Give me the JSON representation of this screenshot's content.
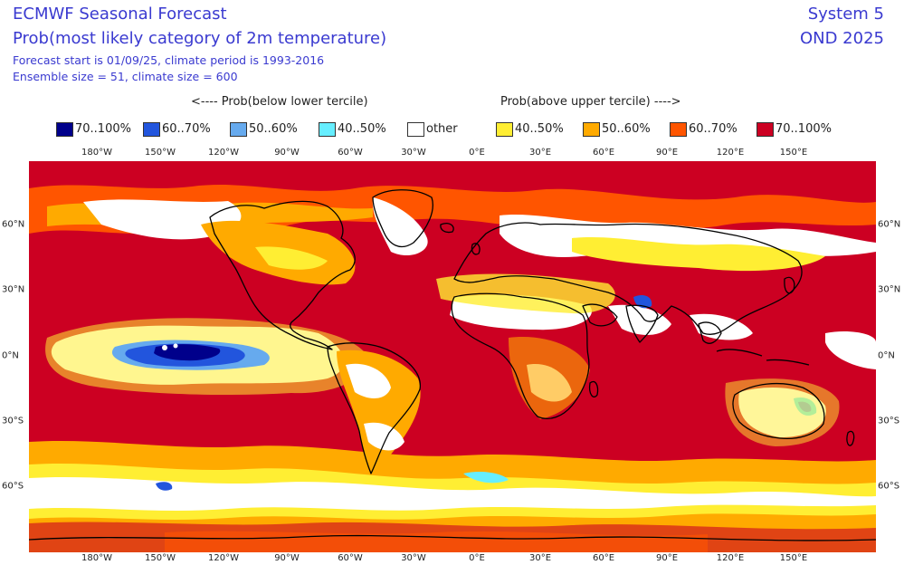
{
  "header": {
    "title_line1": "ECMWF Seasonal Forecast",
    "title_line2": "Prob(most likely category of 2m temperature)",
    "forecast_start": "Forecast start is 01/09/25, climate period is 1993-2016",
    "ensemble": "Ensemble size = 51, climate size = 600",
    "system": "System 5",
    "period": "OND 2025"
  },
  "legend": {
    "below_label": "<---- Prob(below lower tercile)",
    "above_label": "Prob(above upper tercile) ---->",
    "items": [
      {
        "label": "70..100%",
        "color": "#00008b"
      },
      {
        "label": "60..70%",
        "color": "#2255dd"
      },
      {
        "label": "50..60%",
        "color": "#66aaee"
      },
      {
        "label": "40..50%",
        "color": "#66eeff"
      },
      {
        "label": "other",
        "color": "#ffffff"
      },
      {
        "label": "40..50%",
        "color": "#ffee33"
      },
      {
        "label": "50..60%",
        "color": "#ffaa00"
      },
      {
        "label": "60..70%",
        "color": "#ff5500"
      },
      {
        "label": "70..100%",
        "color": "#cc0022"
      }
    ]
  },
  "axes": {
    "lon_labels": [
      "180°W",
      "150°W",
      "120°W",
      "90°W",
      "60°W",
      "30°W",
      "0°E",
      "30°E",
      "60°E",
      "90°E",
      "120°E",
      "150°E"
    ],
    "lat_labels": [
      "60°N",
      "30°N",
      "0°N",
      "30°S",
      "60°S"
    ]
  },
  "map": {
    "background_color": "#cc0022",
    "coast_color": "#000000"
  }
}
